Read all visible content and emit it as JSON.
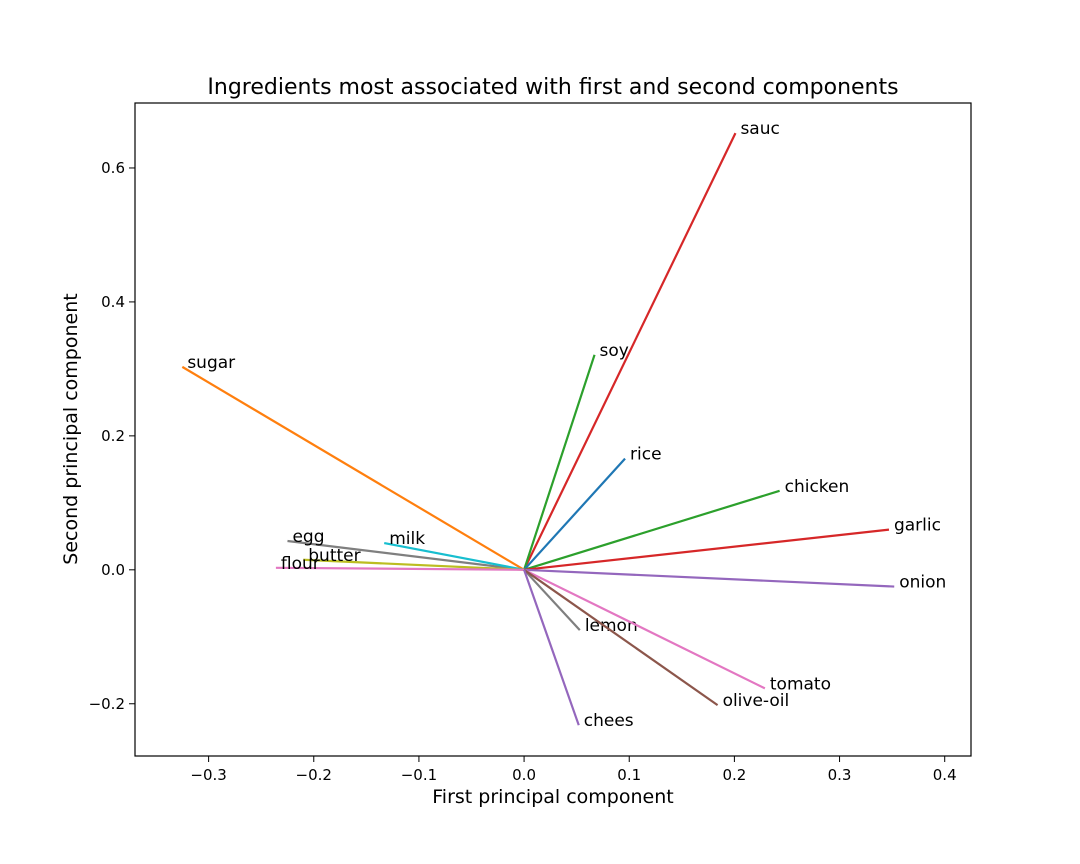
{
  "chart_data": {
    "type": "line",
    "title": "Ingredients most associated with first and second components",
    "xlabel": "First principal component",
    "ylabel": "Second principal component",
    "xlim": [
      -0.37,
      0.425
    ],
    "ylim": [
      -0.278,
      0.697
    ],
    "xticks": [
      -0.3,
      -0.2,
      -0.1,
      0.0,
      0.1,
      0.2,
      0.3,
      0.4
    ],
    "xtick_labels": [
      "−0.3",
      "−0.2",
      "−0.1",
      "0.0",
      "0.1",
      "0.2",
      "0.3",
      "0.4"
    ],
    "yticks": [
      -0.2,
      0.0,
      0.2,
      0.4,
      0.6
    ],
    "ytick_labels": [
      "−0.2",
      "0.0",
      "0.2",
      "0.4",
      "0.6"
    ],
    "grid": false,
    "origin": [
      0,
      0
    ],
    "series": [
      {
        "name": "sauc",
        "x": 0.201,
        "y": 0.652,
        "color": "#d62728"
      },
      {
        "name": "soy",
        "x": 0.067,
        "y": 0.321,
        "color": "#2ca02c"
      },
      {
        "name": "sugar",
        "x": -0.325,
        "y": 0.303,
        "color": "#ff7f0e"
      },
      {
        "name": "rice",
        "x": 0.096,
        "y": 0.166,
        "color": "#1f77b4"
      },
      {
        "name": "chicken",
        "x": 0.243,
        "y": 0.118,
        "color": "#2ca02c"
      },
      {
        "name": "garlic",
        "x": 0.347,
        "y": 0.06,
        "color": "#d62728"
      },
      {
        "name": "egg",
        "x": -0.225,
        "y": 0.043,
        "color": "#7f7f7f"
      },
      {
        "name": "milk",
        "x": -0.133,
        "y": 0.04,
        "color": "#17becf"
      },
      {
        "name": "butter",
        "x": -0.21,
        "y": 0.015,
        "color": "#bcbd22"
      },
      {
        "name": "flour",
        "x": -0.236,
        "y": 0.003,
        "color": "#e377c2"
      },
      {
        "name": "onion",
        "x": 0.352,
        "y": -0.025,
        "color": "#9467bd"
      },
      {
        "name": "lemon",
        "x": 0.053,
        "y": -0.09,
        "color": "#7f7f7f"
      },
      {
        "name": "tomato",
        "x": 0.229,
        "y": -0.177,
        "color": "#e377c2"
      },
      {
        "name": "olive-oil",
        "x": 0.184,
        "y": -0.202,
        "color": "#8c564b"
      },
      {
        "name": "chees",
        "x": 0.052,
        "y": -0.232,
        "color": "#9467bd"
      }
    ]
  }
}
